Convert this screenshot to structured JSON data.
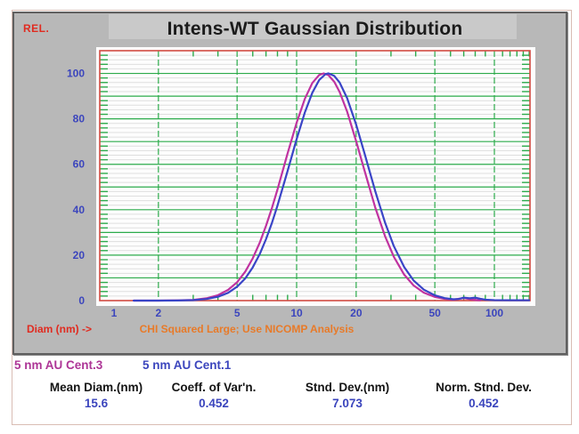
{
  "title": "Intens-WT Gaussian Distribution",
  "y_axis_title": "REL.",
  "x_axis_title": "Diam (nm) ->",
  "warning_message": "CHI Squared Large; Use NICOMP Analysis",
  "legend": [
    {
      "label": "5 nm AU Cent.3",
      "color": "#ad3596"
    },
    {
      "label": "5 nm AU Cent.1",
      "color": "#3b45bd"
    }
  ],
  "stats": [
    {
      "header": "Mean Diam.(nm)",
      "value": "15.6"
    },
    {
      "header": "Coeff. of Var'n.",
      "value": "0.452"
    },
    {
      "header": "Stnd. Dev.(nm)",
      "value": "7.073"
    },
    {
      "header": "Norm. Stnd. Dev.",
      "value": "0.452"
    }
  ],
  "colors": {
    "grid_green": "#2cab4b",
    "grid_minor": "#dedede",
    "axis_red": "#d24b42",
    "tick_text_blue": "#3b45bd",
    "panel_gray": "#b8b8b8"
  },
  "chart_data": {
    "type": "line",
    "title": "Intens-WT Gaussian Distribution",
    "xlabel": "Diam (nm) ->",
    "ylabel": "REL.",
    "x_scale": "log",
    "x_range": [
      1,
      151
    ],
    "y_range": [
      0,
      110
    ],
    "grid": true,
    "x_tick_labels": [
      "1",
      "2",
      "5",
      "10",
      "20",
      "50",
      "100"
    ],
    "x_tick_values": [
      1,
      2,
      5,
      10,
      20,
      50,
      100
    ],
    "x_gridline_values": [
      2,
      5,
      10,
      20,
      50,
      100
    ],
    "x_minor_tick_values": [
      3,
      4,
      6,
      7,
      8,
      9,
      30,
      40,
      60,
      70,
      80,
      90,
      110,
      120,
      130,
      140,
      150
    ],
    "y_tick_labels": [
      0,
      20,
      40,
      60,
      80,
      100
    ],
    "y_major_grid_step": 10,
    "y_minor_grid_step": 2,
    "series": [
      {
        "name": "5 nm AU Cent.3",
        "color": "#c032a0",
        "points": [
          [
            1.5,
            0
          ],
          [
            2,
            0
          ],
          [
            2.5,
            0.1
          ],
          [
            3,
            0.3
          ],
          [
            3.5,
            1
          ],
          [
            4,
            2.4
          ],
          [
            4.5,
            4.7
          ],
          [
            5,
            8.1
          ],
          [
            5.5,
            12.8
          ],
          [
            6,
            18.6
          ],
          [
            6.5,
            25.4
          ],
          [
            7,
            32.9
          ],
          [
            7.5,
            40.8
          ],
          [
            8,
            48.9
          ],
          [
            9,
            64.7
          ],
          [
            10,
            78.3
          ],
          [
            11,
            88.8
          ],
          [
            12,
            95.8
          ],
          [
            13,
            99.3
          ],
          [
            13.7,
            100
          ],
          [
            14.5,
            99.2
          ],
          [
            15.5,
            96.3
          ],
          [
            16.5,
            91.8
          ],
          [
            18,
            83.2
          ],
          [
            20,
            70.2
          ],
          [
            22,
            57.5
          ],
          [
            25,
            40.9
          ],
          [
            28,
            28.3
          ],
          [
            31,
            19.3
          ],
          [
            35,
            11.4
          ],
          [
            39,
            6.7
          ],
          [
            44,
            3.5
          ],
          [
            50,
            1.6
          ],
          [
            56,
            0.8
          ],
          [
            62,
            0.4
          ],
          [
            66,
            0.8
          ],
          [
            70,
            1.1
          ],
          [
            74,
            0.8
          ],
          [
            78,
            0.4
          ],
          [
            82,
            0.2
          ],
          [
            85,
            0.15
          ]
        ]
      },
      {
        "name": "5 nm AU Cent.1",
        "color": "#3944c7",
        "points": [
          [
            1.5,
            0
          ],
          [
            2,
            0
          ],
          [
            2.5,
            0.05
          ],
          [
            3,
            0.2
          ],
          [
            3.5,
            0.7
          ],
          [
            4,
            1.7
          ],
          [
            4.5,
            3.4
          ],
          [
            5,
            6.1
          ],
          [
            5.5,
            9.8
          ],
          [
            6,
            14.6
          ],
          [
            6.5,
            20.4
          ],
          [
            7,
            27
          ],
          [
            7.5,
            34.2
          ],
          [
            8,
            41.8
          ],
          [
            9,
            57
          ],
          [
            10,
            71.1
          ],
          [
            11,
            82.8
          ],
          [
            12,
            91.5
          ],
          [
            13,
            97.1
          ],
          [
            14,
            99.7
          ],
          [
            14.5,
            100
          ],
          [
            15.5,
            98.9
          ],
          [
            16.5,
            96
          ],
          [
            18,
            89.1
          ],
          [
            20,
            77.5
          ],
          [
            22,
            65.1
          ],
          [
            25,
            48.1
          ],
          [
            28,
            34.3
          ],
          [
            31,
            24
          ],
          [
            35,
            14.7
          ],
          [
            39,
            8.9
          ],
          [
            44,
            4.8
          ],
          [
            50,
            2.3
          ],
          [
            56,
            1.1
          ],
          [
            62,
            0.6
          ],
          [
            66,
            0.7
          ],
          [
            70,
            1.3
          ],
          [
            75,
            1
          ],
          [
            80,
            1.3
          ],
          [
            85,
            0.8
          ],
          [
            90,
            0.4
          ],
          [
            100,
            0.2
          ],
          [
            120,
            0.15
          ],
          [
            150,
            0.15
          ]
        ]
      }
    ]
  }
}
